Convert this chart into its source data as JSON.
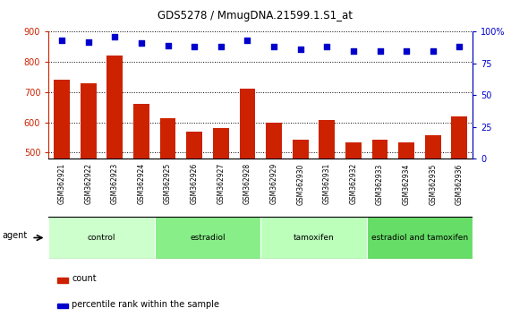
{
  "title": "GDS5278 / MmugDNA.21599.1.S1_at",
  "samples": [
    "GSM362921",
    "GSM362922",
    "GSM362923",
    "GSM362924",
    "GSM362925",
    "GSM362926",
    "GSM362927",
    "GSM362928",
    "GSM362929",
    "GSM362930",
    "GSM362931",
    "GSM362932",
    "GSM362933",
    "GSM362934",
    "GSM362935",
    "GSM362936"
  ],
  "counts": [
    742,
    728,
    820,
    662,
    612,
    568,
    580,
    710,
    600,
    543,
    607,
    533,
    542,
    534,
    558,
    618
  ],
  "percentiles": [
    93,
    92,
    96,
    91,
    89,
    88,
    88,
    93,
    88,
    86,
    88,
    85,
    85,
    85,
    85,
    88
  ],
  "ylim_left": [
    480,
    900
  ],
  "ylim_right": [
    0,
    100
  ],
  "yticks_left": [
    500,
    600,
    700,
    800,
    900
  ],
  "yticks_right": [
    0,
    25,
    50,
    75,
    100
  ],
  "bar_color": "#cc2200",
  "dot_color": "#0000cc",
  "groups": [
    {
      "label": "control",
      "start": 0,
      "end": 4,
      "color": "#ccffcc"
    },
    {
      "label": "estradiol",
      "start": 4,
      "end": 8,
      "color": "#88ee88"
    },
    {
      "label": "tamoxifen",
      "start": 8,
      "end": 12,
      "color": "#bbffbb"
    },
    {
      "label": "estradiol and tamoxifen",
      "start": 12,
      "end": 16,
      "color": "#66dd66"
    }
  ],
  "agent_label": "agent",
  "legend_count_label": "count",
  "legend_percentile_label": "percentile rank within the sample",
  "xtick_bg": "#d0d0d0",
  "plot_bg_color": "#ffffff",
  "grid_color": "#000000"
}
